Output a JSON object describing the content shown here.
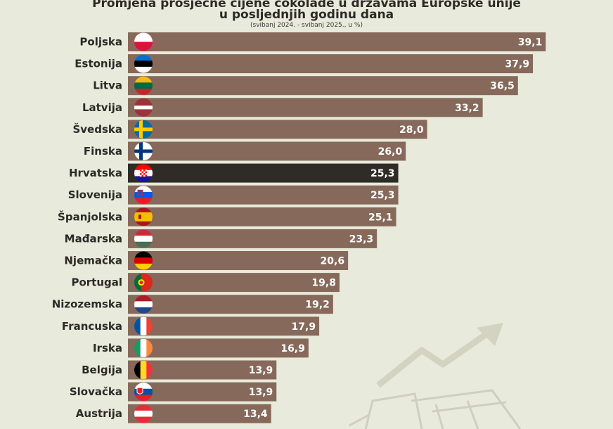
{
  "chart_data": {
    "type": "bar",
    "orientation": "horizontal",
    "title_line1": "Promjena prosječne cijene čokolade u državama Europske unije",
    "title_line2": "u posljednjih godinu dana",
    "subtitle": "(svibanj 2024. - svibanj 2025., u %)",
    "categories": [
      "Poljska",
      "Estonija",
      "Litva",
      "Latvija",
      "Švedska",
      "Finska",
      "Hrvatska",
      "Slovenija",
      "Španjolska",
      "Mađarska",
      "Njemačka",
      "Portugal",
      "Nizozemska",
      "Francuska",
      "Irska",
      "Belgija",
      "Slovačka",
      "Austrija"
    ],
    "values": [
      39.1,
      37.9,
      36.5,
      33.2,
      28.0,
      26.0,
      25.3,
      25.3,
      25.1,
      23.3,
      20.6,
      19.8,
      19.2,
      17.9,
      16.9,
      13.9,
      13.9,
      13.4
    ],
    "value_labels": [
      "39,1",
      "37,9",
      "36,5",
      "33,2",
      "28,0",
      "26,0",
      "25,3",
      "25,3",
      "25,1",
      "23,3",
      "20,6",
      "19,8",
      "19,2",
      "17,9",
      "16,9",
      "13,9",
      "13,9",
      "13,4"
    ],
    "highlight": "Hrvatska",
    "colors": {
      "bar": "#86695a",
      "highlight": "#2f2b27",
      "background": "#e8eadb"
    }
  }
}
